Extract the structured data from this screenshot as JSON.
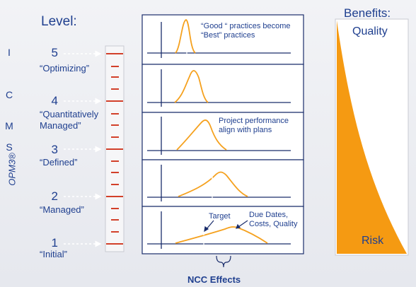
{
  "level_title": "Level:",
  "opm_letters": [
    "I",
    "C",
    "M",
    "S"
  ],
  "opm_label": "OPM3®",
  "levels": [
    {
      "number": "5",
      "name": "“Optimizing”"
    },
    {
      "number": "4",
      "name": "“Quantitatively Managed”"
    },
    {
      "number": "3",
      "name": "“Defined”"
    },
    {
      "number": "2",
      "name": "“Managed”"
    },
    {
      "number": "1",
      "name": "“Initial”"
    }
  ],
  "panels": {
    "p1_caption": "“Good “ practices become “Best” practices",
    "p3_caption": "Project performance align with plans",
    "p5_target": "Target",
    "p5_due": "Due Dates, Costs, Quality"
  },
  "ncc_label": "NCC Effects",
  "benefits": {
    "title": "Benefits:",
    "top_label": "Quality",
    "bottom_label": "Risk"
  },
  "colors": {
    "text_blue": "#1f3f8f",
    "panel_border": "#1a2d6b",
    "curve": "#f5a11e",
    "ruler_mark": "#d2402a",
    "wedge": "#f59a12"
  }
}
